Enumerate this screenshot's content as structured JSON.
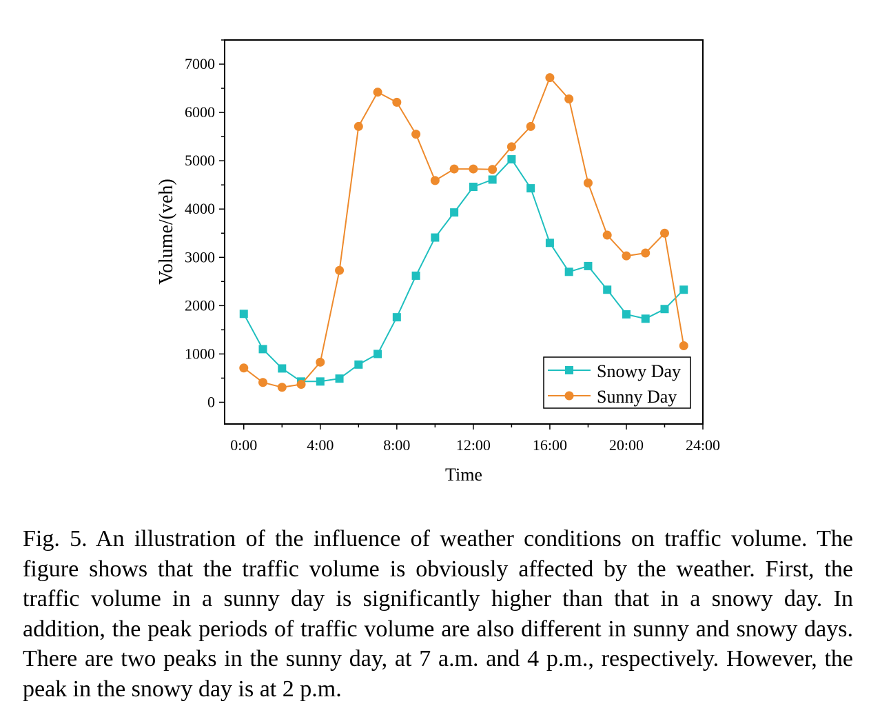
{
  "chart_data": {
    "type": "line",
    "xlabel": "Time",
    "ylabel": "Volume/(veh)",
    "x_hours": [
      0,
      1,
      2,
      3,
      4,
      5,
      6,
      7,
      8,
      9,
      10,
      11,
      12,
      13,
      14,
      15,
      16,
      17,
      18,
      19,
      20,
      21,
      22,
      23
    ],
    "x_ticks": [
      "0:00",
      "4:00",
      "8:00",
      "12:00",
      "16:00",
      "20:00",
      "24:00"
    ],
    "y_ticks": [
      "0",
      "1000",
      "2000",
      "3000",
      "4000",
      "5000",
      "6000",
      "7000"
    ],
    "xlim": [
      "-1:00",
      "24:00"
    ],
    "ylim": [
      -450,
      7500
    ],
    "legend_position": "bottom-right",
    "series": [
      {
        "name": "Snowy Day",
        "color": "#1fbfbf",
        "marker": "square",
        "values": [
          1830,
          1100,
          700,
          430,
          430,
          490,
          780,
          1000,
          1760,
          2620,
          3410,
          3930,
          4460,
          4610,
          5030,
          4430,
          3300,
          2700,
          2820,
          2330,
          1820,
          1730,
          1930,
          2330
        ]
      },
      {
        "name": "Sunny Day",
        "color": "#ee8a2c",
        "marker": "circle",
        "values": [
          710,
          410,
          310,
          370,
          830,
          2730,
          5710,
          6420,
          6210,
          5550,
          4590,
          4830,
          4830,
          4820,
          5290,
          5710,
          6720,
          6280,
          4540,
          3460,
          3030,
          3090,
          3500,
          1170
        ]
      }
    ]
  },
  "caption": "Fig. 5.  An illustration of the influence of weather conditions on traffic volume. The figure shows that the traffic volume is obviously affected by the weather. First, the traffic volume in a sunny day is significantly higher than that in a snowy day. In addition, the peak periods of traffic volume are also different in sunny and snowy days. There are two peaks in the sunny day, at 7 a.m. and 4 p.m., respectively. However, the peak in the snowy day is at 2 p.m."
}
